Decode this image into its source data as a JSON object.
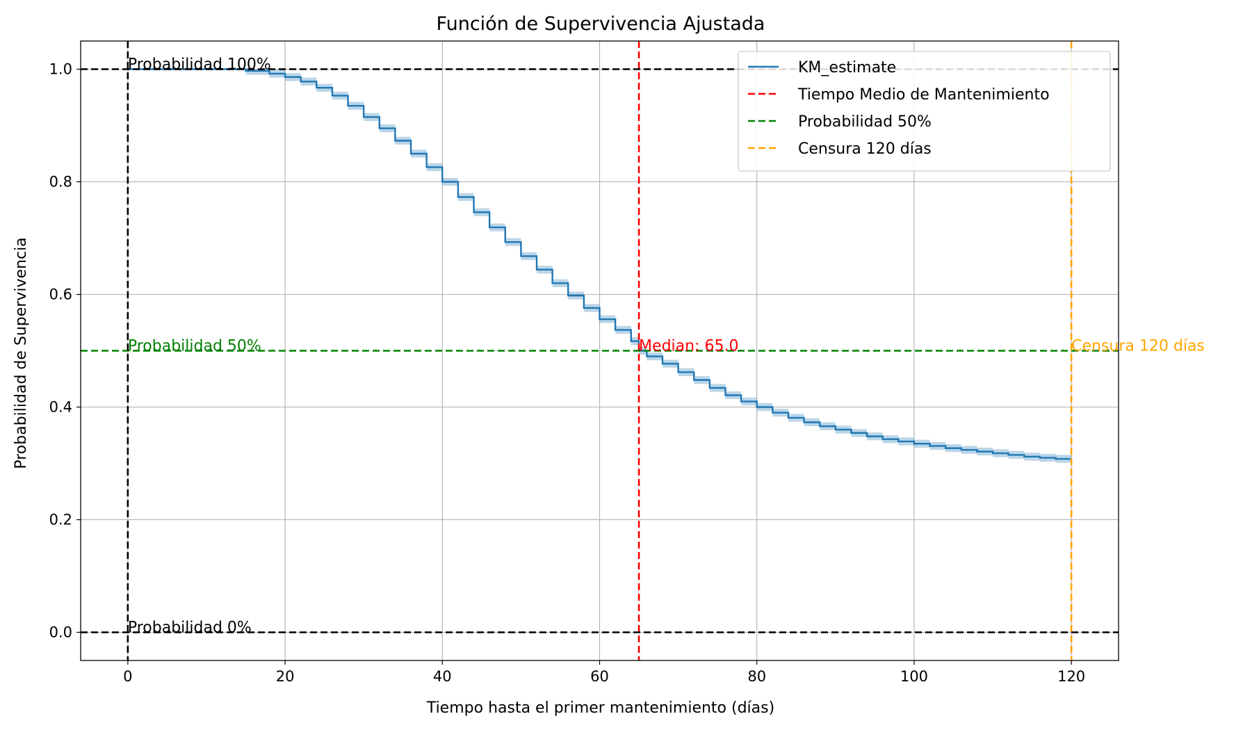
{
  "chart_data": {
    "type": "line",
    "title": "Función de Supervivencia Ajustada",
    "xlabel": "Tiempo hasta el primer mantenimiento (días)",
    "ylabel": "Probabilidad de Supervivencia",
    "xlim": [
      -6,
      126
    ],
    "ylim": [
      -0.05,
      1.05
    ],
    "xticks": [
      0,
      20,
      40,
      60,
      80,
      100,
      120
    ],
    "yticks": [
      0.0,
      0.2,
      0.4,
      0.6,
      0.8,
      1.0
    ],
    "xtick_labels": [
      "0",
      "20",
      "40",
      "60",
      "80",
      "100",
      "120"
    ],
    "ytick_labels": [
      "0.0",
      "0.2",
      "0.4",
      "0.6",
      "0.8",
      "1.0"
    ],
    "grid": true,
    "legend_position": "top-right",
    "series": [
      {
        "name": "KM_estimate",
        "color": "#1f77b4",
        "style": "step",
        "confidence_band": true,
        "x": [
          0,
          5,
          10,
          15,
          18,
          20,
          22,
          24,
          26,
          28,
          30,
          32,
          34,
          36,
          38,
          40,
          42,
          44,
          46,
          48,
          50,
          52,
          54,
          56,
          58,
          60,
          62,
          64,
          65,
          66,
          68,
          70,
          72,
          74,
          76,
          78,
          80,
          82,
          84,
          86,
          88,
          90,
          92,
          94,
          96,
          98,
          100,
          102,
          104,
          106,
          108,
          110,
          112,
          114,
          116,
          118,
          120
        ],
        "y": [
          1.0,
          1.0,
          1.0,
          0.997,
          0.992,
          0.986,
          0.978,
          0.967,
          0.953,
          0.935,
          0.915,
          0.895,
          0.873,
          0.85,
          0.826,
          0.8,
          0.773,
          0.746,
          0.719,
          0.693,
          0.668,
          0.644,
          0.62,
          0.598,
          0.576,
          0.556,
          0.537,
          0.517,
          0.5,
          0.49,
          0.477,
          0.462,
          0.448,
          0.434,
          0.421,
          0.41,
          0.4,
          0.39,
          0.381,
          0.373,
          0.366,
          0.36,
          0.354,
          0.348,
          0.343,
          0.339,
          0.335,
          0.331,
          0.327,
          0.324,
          0.321,
          0.318,
          0.315,
          0.312,
          0.31,
          0.308,
          0.306
        ],
        "ci_half_width": 0.007
      }
    ],
    "reference_lines": [
      {
        "orientation": "vertical",
        "value": 65,
        "color": "#ff0000",
        "style": "dashed",
        "legend": "Tiempo Medio de Mantenimiento",
        "label": "Median: 65.0",
        "label_y": 0.5
      },
      {
        "orientation": "horizontal",
        "value": 0.5,
        "color": "#008000",
        "style": "dashed",
        "legend": "Probabilidad 50%",
        "label": "Probabilidad 50%",
        "label_x": 0
      },
      {
        "orientation": "vertical",
        "value": 120,
        "color": "#ffa500",
        "style": "dashed",
        "legend": "Censura 120 días",
        "label": "Censura 120 días",
        "label_y": 0.5
      },
      {
        "orientation": "horizontal",
        "value": 1.0,
        "color": "#000000",
        "style": "dashed",
        "legend": "",
        "label": "Probabilidad 100%",
        "label_x": 0
      },
      {
        "orientation": "horizontal",
        "value": 0.0,
        "color": "#000000",
        "style": "dashed",
        "legend": "",
        "label": "Probabilidad 0%",
        "label_x": 0
      },
      {
        "orientation": "vertical",
        "value": 0,
        "color": "#000000",
        "style": "dashed",
        "legend": "",
        "label": ""
      }
    ]
  }
}
